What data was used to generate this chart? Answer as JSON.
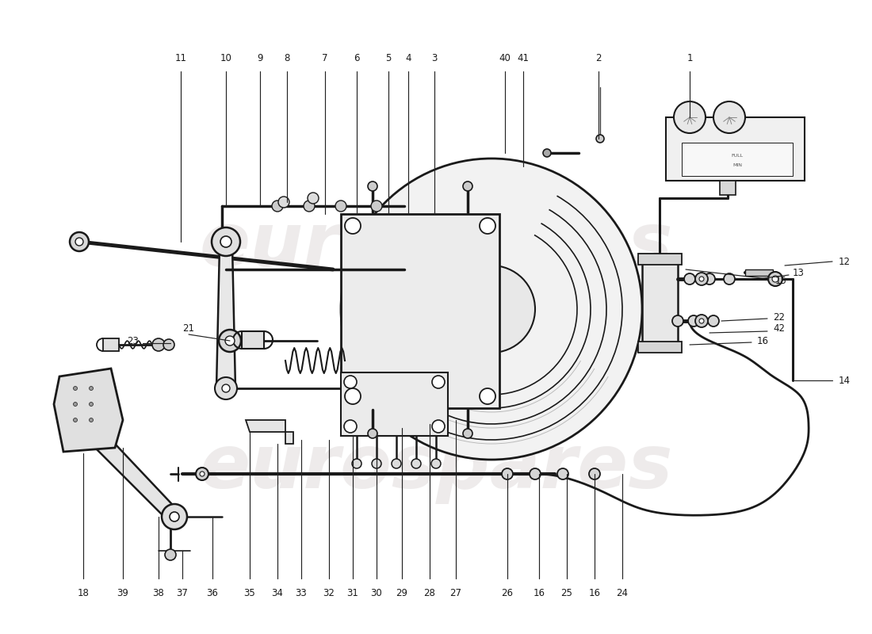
{
  "background_color": "#ffffff",
  "line_color": "#1a1a1a",
  "fig_width": 11.0,
  "fig_height": 8.0,
  "dpi": 100,
  "watermark": "eurospares",
  "wm_color": "#e0dcdc",
  "wm_alpha": 0.55
}
